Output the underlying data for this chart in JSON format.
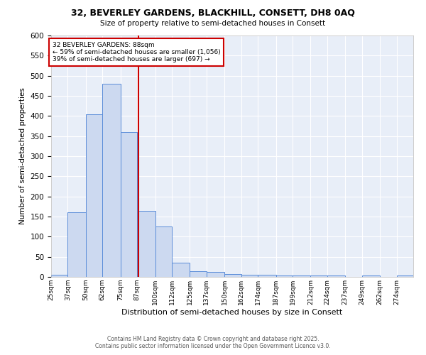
{
  "title1": "32, BEVERLEY GARDENS, BLACKHILL, CONSETT, DH8 0AQ",
  "title2": "Size of property relative to semi-detached houses in Consett",
  "xlabel": "Distribution of semi-detached houses by size in Consett",
  "ylabel": "Number of semi-detached properties",
  "bin_labels": [
    "25sqm",
    "37sqm",
    "50sqm",
    "62sqm",
    "75sqm",
    "87sqm",
    "100sqm",
    "112sqm",
    "125sqm",
    "137sqm",
    "150sqm",
    "162sqm",
    "174sqm",
    "187sqm",
    "199sqm",
    "212sqm",
    "224sqm",
    "237sqm",
    "249sqm",
    "262sqm",
    "274sqm"
  ],
  "bar_values": [
    5,
    160,
    405,
    480,
    360,
    165,
    125,
    35,
    15,
    12,
    7,
    6,
    5,
    4,
    3,
    3,
    4,
    0,
    3,
    0,
    3
  ],
  "bin_edges": [
    25,
    37,
    50,
    62,
    75,
    87,
    100,
    112,
    125,
    137,
    150,
    162,
    174,
    187,
    199,
    212,
    224,
    237,
    249,
    262,
    274,
    286
  ],
  "property_size": 88,
  "bar_color": "#ccd9f0",
  "bar_edge_color": "#5b8dd9",
  "vline_color": "#cc0000",
  "annotation_box_color": "#cc0000",
  "background_color": "#e8eef8",
  "grid_color": "#ffffff",
  "annotation_text_line1": "32 BEVERLEY GARDENS: 88sqm",
  "annotation_text_line2": "← 59% of semi-detached houses are smaller (1,056)",
  "annotation_text_line3": "39% of semi-detached houses are larger (697) →",
  "footer1": "Contains HM Land Registry data © Crown copyright and database right 2025.",
  "footer2": "Contains public sector information licensed under the Open Government Licence v3.0.",
  "ylim": [
    0,
    600
  ],
  "yticks": [
    0,
    50,
    100,
    150,
    200,
    250,
    300,
    350,
    400,
    450,
    500,
    550,
    600
  ]
}
